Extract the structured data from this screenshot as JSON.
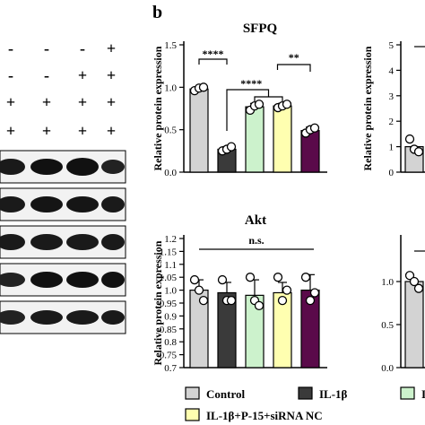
{
  "panel_label": "b",
  "treatment_rows": [
    [
      "-",
      "-",
      "-",
      "+"
    ],
    [
      "-",
      "-",
      "+",
      "+"
    ],
    [
      "+",
      "+",
      "+",
      "+"
    ],
    [
      "+",
      "+",
      "+",
      "+"
    ]
  ],
  "legend": [
    {
      "label": "Control",
      "color": "#d3d3d3"
    },
    {
      "label": "IL-1β",
      "color": "#3a3a3a"
    },
    {
      "label": "I",
      "color": "#ccf2cc"
    },
    {
      "label": "IL-1β+P-15+siRNA NC",
      "color": "#ffffb0"
    }
  ],
  "chart_data": [
    {
      "type": "bar",
      "title": "SFPQ",
      "ylabel": "Relative protein expression",
      "ylim": [
        0,
        1.5
      ],
      "yticks": [
        0.0,
        0.5,
        1.0,
        1.5
      ],
      "colors": [
        "#d3d3d3",
        "#3a3a3a",
        "#ccf2cc",
        "#ffffb0",
        "#5a0a4a"
      ],
      "values": [
        0.98,
        0.27,
        0.77,
        0.78,
        0.49
      ],
      "errors": [
        0.02,
        0.03,
        0.04,
        0.03,
        0.04
      ],
      "points": [
        [
          0.96,
          0.99,
          1.0
        ],
        [
          0.25,
          0.27,
          0.3
        ],
        [
          0.73,
          0.78,
          0.8
        ],
        [
          0.76,
          0.78,
          0.8
        ],
        [
          0.46,
          0.5,
          0.52
        ]
      ],
      "annotations": [
        "****",
        "****",
        "**"
      ]
    },
    {
      "type": "bar",
      "title": "Akt",
      "ylabel": "Relative protein expression",
      "ylim": [
        0.7,
        1.2
      ],
      "yticks": [
        0.7,
        0.75,
        0.8,
        0.85,
        0.9,
        0.95,
        1.0,
        1.05,
        1.1,
        1.15,
        1.2
      ],
      "ytick_labels": [
        "0.7",
        "0.75",
        "0.8",
        "0.85",
        "0.9",
        "0.95",
        "1.0",
        "1.05",
        "1.1",
        "1.15",
        "1.2"
      ],
      "colors": [
        "#d3d3d3",
        "#3a3a3a",
        "#ccf2cc",
        "#ffffb0",
        "#5a0a4a"
      ],
      "values": [
        1.0,
        0.99,
        0.98,
        0.99,
        1.0
      ],
      "errors": [
        0.04,
        0.04,
        0.06,
        0.04,
        0.06
      ],
      "points": [
        [
          1.04,
          1.0,
          0.96
        ],
        [
          1.04,
          0.96,
          0.96
        ],
        [
          1.05,
          0.96,
          0.94
        ],
        [
          1.05,
          0.96,
          1.0
        ],
        [
          1.05,
          0.96,
          0.99
        ]
      ],
      "annotations": [
        "n.s."
      ]
    },
    {
      "type": "bar",
      "title": "",
      "ylabel": "Relative protein expression",
      "ylim": [
        0,
        5
      ],
      "yticks": [
        0,
        1,
        2,
        3,
        4,
        5
      ],
      "values": [
        1.0
      ],
      "points": [
        [
          1.3,
          0.9,
          0.8
        ]
      ]
    },
    {
      "type": "bar",
      "title": "",
      "ylabel": "",
      "ylim": [
        0,
        1.5
      ],
      "yticks": [
        0.0,
        0.5,
        1.0
      ],
      "values": [
        1.0
      ],
      "points": [
        [
          1.07,
          1.0,
          0.92
        ]
      ]
    }
  ]
}
